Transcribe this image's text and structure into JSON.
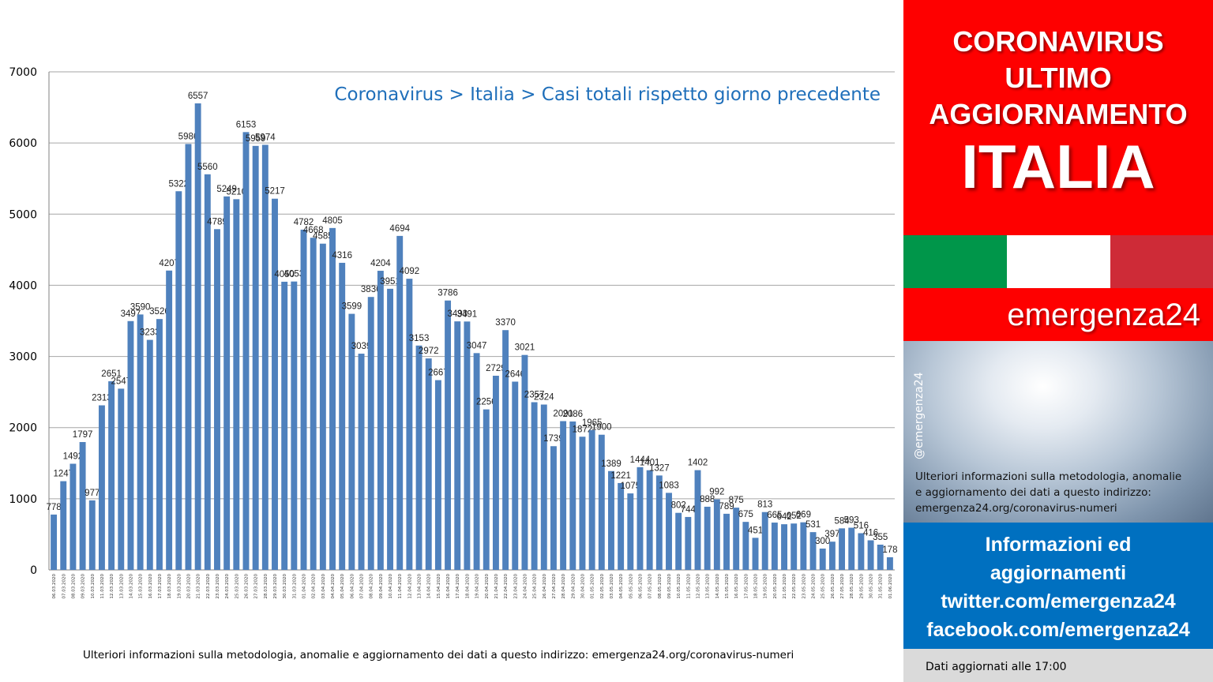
{
  "chart_data": {
    "type": "bar",
    "title": "Coronavirus > Italia > Casi totali rispetto giorno precedente",
    "ylim": [
      0,
      7000
    ],
    "yticks": [
      "0",
      "1000",
      "2000",
      "3000",
      "4000",
      "5000",
      "6000",
      "7000"
    ],
    "grid": true,
    "bar_color": "#4f81bd",
    "title_color": "#1f6fba",
    "categories": [
      "06.03.2020",
      "07.03.2020",
      "08.03.2020",
      "09.03.2020",
      "10.03.2020",
      "11.03.2020",
      "12.03.2020",
      "13.03.2020",
      "14.03.2020",
      "15.03.2020",
      "16.03.2020",
      "17.03.2020",
      "18.03.2020",
      "19.03.2020",
      "20.03.2020",
      "21.03.2020",
      "22.03.2020",
      "23.03.2020",
      "24.03.2020",
      "25.03.2020",
      "26.03.2020",
      "27.03.2020",
      "28.03.2020",
      "29.03.2020",
      "30.03.2020",
      "31.03.2020",
      "01.04.2020",
      "02.04.2020",
      "03.04.2020",
      "04.04.2020",
      "05.04.2020",
      "06.04.2020",
      "07.04.2020",
      "08.04.2020",
      "09.04.2020",
      "10.04.2020",
      "11.04.2020",
      "12.04.2020",
      "13.04.2020",
      "14.04.2020",
      "15.04.2020",
      "16.04.2020",
      "17.04.2020",
      "18.04.2020",
      "19.04.2020",
      "20.04.2020",
      "21.04.2020",
      "22.04.2020",
      "23.04.2020",
      "24.04.2020",
      "25.04.2020",
      "26.04.2020",
      "27.04.2020",
      "28.04.2020",
      "29.04.2020",
      "30.04.2020",
      "01.05.2020",
      "02.05.2020",
      "03.05.2020",
      "04.05.2020",
      "05.05.2020",
      "06.05.2020",
      "07.05.2020",
      "08.05.2020",
      "09.05.2020",
      "10.05.2020",
      "11.05.2020",
      "12.05.2020",
      "13.05.2020",
      "14.05.2020",
      "15.05.2020",
      "16.05.2020",
      "17.05.2020",
      "18.05.2020",
      "19.05.2020",
      "20.05.2020",
      "21.05.2020",
      "22.05.2020",
      "23.05.2020",
      "24.05.2020",
      "25.05.2020",
      "26.05.2020",
      "27.05.2020",
      "28.05.2020",
      "29.05.2020",
      "30.05.2020",
      "31.05.2020",
      "01.06.2020"
    ],
    "values": [
      778,
      1247,
      1492,
      1797,
      977,
      2313,
      2651,
      2547,
      3497,
      3590,
      3233,
      3526,
      4207,
      5322,
      5986,
      6557,
      5560,
      4789,
      5249,
      5210,
      6153,
      5959,
      5974,
      5217,
      4050,
      4053,
      4782,
      4668,
      4585,
      4805,
      4316,
      3599,
      3039,
      3836,
      4204,
      3951,
      4694,
      4092,
      3153,
      2972,
      2667,
      3786,
      3493,
      3491,
      3047,
      2256,
      2729,
      3370,
      2646,
      3021,
      2357,
      2324,
      1739,
      2091,
      2086,
      1872,
      1965,
      1900,
      1389,
      1221,
      1075,
      1444,
      1401,
      1327,
      1083,
      802,
      744,
      1402,
      888,
      992,
      789,
      875,
      675,
      451,
      813,
      665,
      642,
      652,
      669,
      531,
      300,
      397,
      584,
      593,
      516,
      416,
      355,
      178
    ]
  },
  "footnote": "Ulteriori informazioni sulla metodologia, anomalie e aggiornamento dei dati a questo indirizzo: emergenza24.org/coronavirus-numeri",
  "side": {
    "title_lines": [
      "CORONAVIRUS",
      "ULTIMO",
      "AGGIORNAMENTO"
    ],
    "country": "ITALIA",
    "flag_colors": [
      "#00964a",
      "#ffffff",
      "#ce2b37"
    ],
    "brand": "emergenza24",
    "handle": "@emergenza24",
    "info_lines": [
      "Ulteriori informazioni sulla metodologia, anomalie",
      "e aggiornamento dei dati a questo indirizzo:",
      "emergenza24.org/coronavirus-numeri"
    ],
    "blue_lines": [
      "Informazioni ed",
      "aggiornamenti",
      "twitter.com/emergenza24",
      "facebook.com/emergenza24"
    ],
    "updated": "Dati aggiornati alle 17:00"
  }
}
